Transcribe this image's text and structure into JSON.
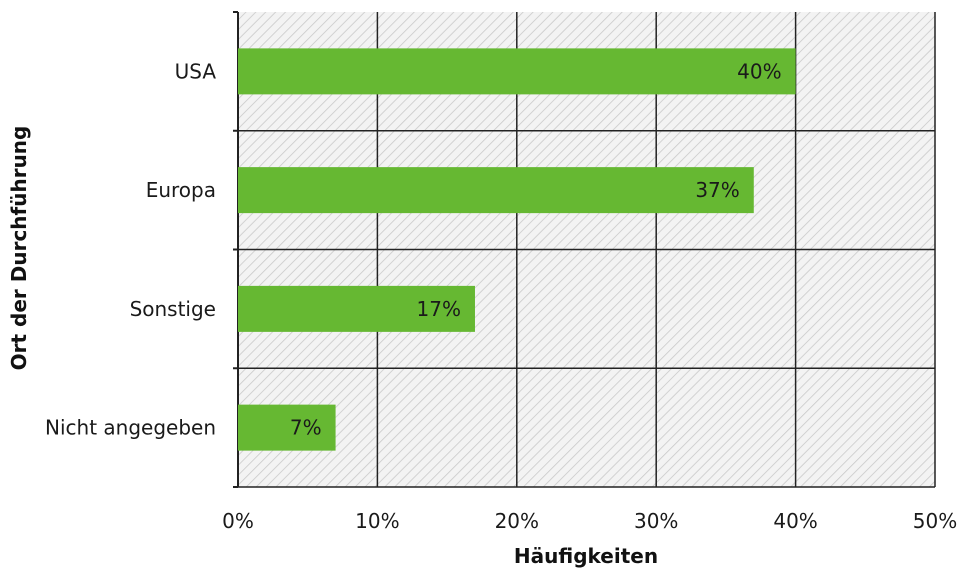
{
  "chart_data": {
    "type": "bar",
    "orientation": "horizontal",
    "categories": [
      "USA",
      "Europa",
      "Sonstige",
      "Nicht angegeben"
    ],
    "values": [
      40,
      37,
      17,
      7
    ],
    "data_labels": [
      "40%",
      "37%",
      "17%",
      "7%"
    ],
    "xlabel": "Häufigkeiten",
    "ylabel": "Ort der Durchführung",
    "xlim": [
      0,
      50
    ],
    "x_ticks": [
      0,
      10,
      20,
      30,
      40,
      50
    ],
    "x_tick_labels": [
      "0%",
      "10%",
      "20%",
      "30%",
      "40%",
      "50%"
    ],
    "grid": true,
    "legend": "none",
    "bar_color": "#66b832",
    "plot_background": "hatched-grey"
  }
}
